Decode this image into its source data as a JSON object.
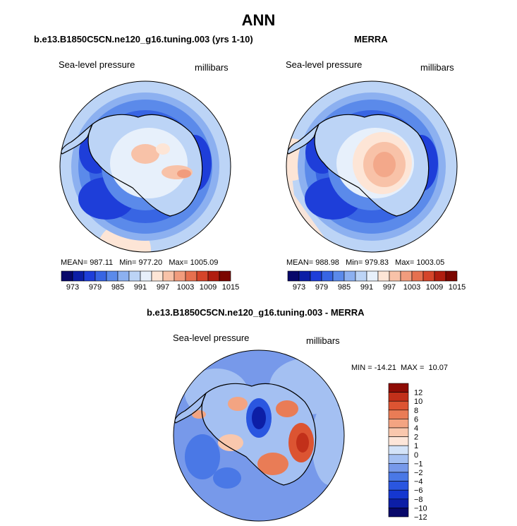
{
  "page_title": "ANN",
  "colors": {
    "abs_scale": [
      "#08086a",
      "#0c1ea6",
      "#1e3ed9",
      "#3865e3",
      "#5b8aea",
      "#8cb0f0",
      "#bcd4f6",
      "#e7f0fb",
      "#fde5d6",
      "#f8c2a8",
      "#f19c7d",
      "#e6704f",
      "#d5452a",
      "#b01d0f",
      "#7b0600"
    ],
    "diff_scale": [
      "#08086a",
      "#0c1ea6",
      "#1537d0",
      "#2a56e0",
      "#4a78e6",
      "#7799ea",
      "#a4c0f2",
      "#d3e3f8",
      "#fde6d9",
      "#f9c7ad",
      "#f3a482",
      "#e97c56",
      "#dc5432",
      "#c2301a",
      "#8e0c05"
    ]
  },
  "chart_data": [
    {
      "type": "heatmap",
      "id": "model",
      "title": "b.e13.B1850C5CN.ne120_g16.tuning.003 (yrs 1-10)",
      "variable": "Sea-level pressure",
      "units": "millibars",
      "stats": {
        "mean_label": "MEAN=",
        "mean": "987.11",
        "min_label": "Min=",
        "min": "977.20",
        "max_label": "Max=",
        "max": "1005.09"
      },
      "levels": [
        973,
        979,
        985,
        991,
        997,
        1003,
        1009,
        1015
      ],
      "projection": "south polar stereographic"
    },
    {
      "type": "heatmap",
      "id": "obs",
      "title": "MERRA",
      "variable": "Sea-level pressure",
      "units": "millibars",
      "stats": {
        "mean_label": "MEAN=",
        "mean": "988.98",
        "min_label": "Min=",
        "min": "979.83",
        "max_label": "Max=",
        "max": "1003.05"
      },
      "levels": [
        973,
        979,
        985,
        991,
        997,
        1003,
        1009,
        1015
      ],
      "projection": "south polar stereographic"
    },
    {
      "type": "heatmap",
      "id": "diff",
      "title": "b.e13.B1850C5CN.ne120_g16.tuning.003 - MERRA",
      "variable": "Sea-level pressure",
      "units": "millibars",
      "stats": {
        "min_label": "MIN =",
        "min": "-14.21",
        "max_label": "MAX =",
        "max": "10.07"
      },
      "levels": [
        "12",
        "10",
        "8",
        "6",
        "4",
        "2",
        "1",
        "0",
        "−1",
        "−2",
        "−4",
        "−6",
        "−8",
        "−10",
        "−12"
      ],
      "projection": "south polar stereographic"
    }
  ]
}
